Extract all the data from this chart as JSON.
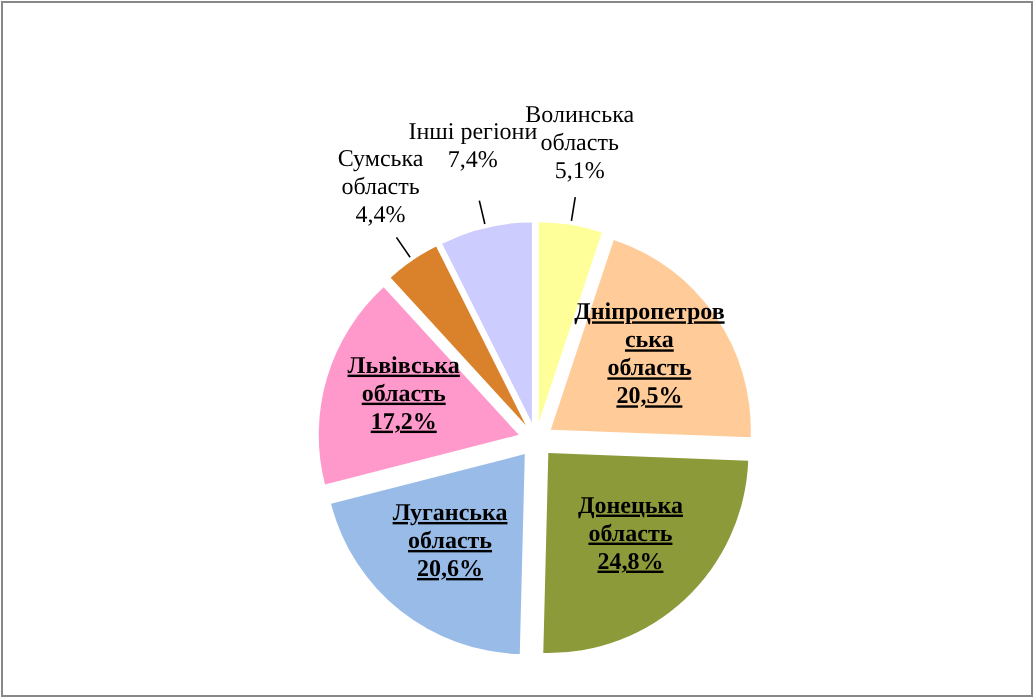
{
  "chart_data": {
    "type": "pie",
    "categories": [
      "Волинська область",
      "Дніпропетровська область",
      "Донецька область",
      "Луганська область",
      "Львівська область",
      "Сумська область",
      "Інші регіони"
    ],
    "values": [
      5.1,
      20.5,
      24.8,
      20.6,
      17.2,
      4.4,
      7.4
    ],
    "value_labels": [
      "5,1%",
      "20,5%",
      "24,8%",
      "20,6%",
      "17,2%",
      "4,4%",
      "7,4%"
    ],
    "colors": [
      "#ffff99",
      "#ffcc99",
      "#8c9a3a",
      "#99bbe8",
      "#ff99cc",
      "#d9822b",
      "#ccccff"
    ]
  }
}
